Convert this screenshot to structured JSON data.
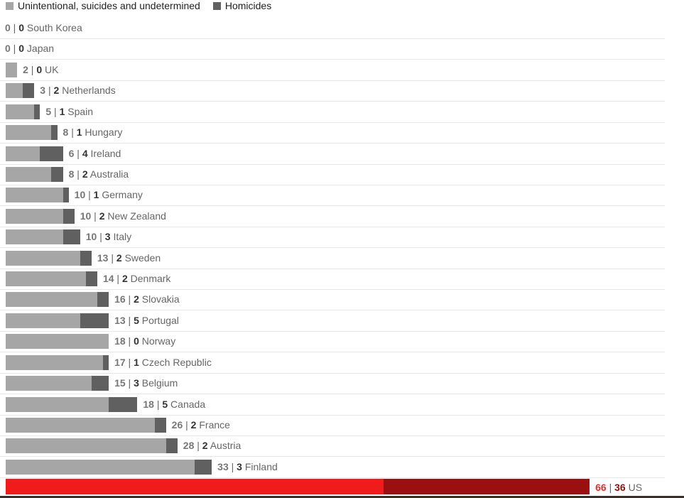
{
  "chart_data": {
    "type": "bar",
    "orientation": "horizontal",
    "stacked": true,
    "legend_position": "top-left",
    "series": [
      {
        "name": "Unintentional, suicides and undetermined",
        "color": "#a6a6a6",
        "highlight_color": "#f01b1b"
      },
      {
        "name": "Homicides",
        "color": "#606060",
        "highlight_color": "#9a0f0f"
      }
    ],
    "categories": [
      "South Korea",
      "Japan",
      "UK",
      "Netherlands",
      "Spain",
      "Hungary",
      "Ireland",
      "Australia",
      "Germany",
      "New Zealand",
      "Italy",
      "Sweden",
      "Denmark",
      "Slovakia",
      "Portugal",
      "Norway",
      "Czech Republic",
      "Belgium",
      "Canada",
      "France",
      "Austria",
      "Finland",
      "US"
    ],
    "values_unintentional": [
      0,
      0,
      2,
      3,
      5,
      8,
      6,
      8,
      10,
      10,
      10,
      13,
      14,
      16,
      13,
      18,
      17,
      15,
      18,
      26,
      28,
      33,
      66
    ],
    "values_homicides": [
      0,
      0,
      0,
      2,
      1,
      1,
      4,
      2,
      1,
      2,
      3,
      2,
      2,
      2,
      5,
      0,
      1,
      3,
      5,
      2,
      2,
      3,
      36
    ],
    "highlighted": "US",
    "separator": "|"
  }
}
